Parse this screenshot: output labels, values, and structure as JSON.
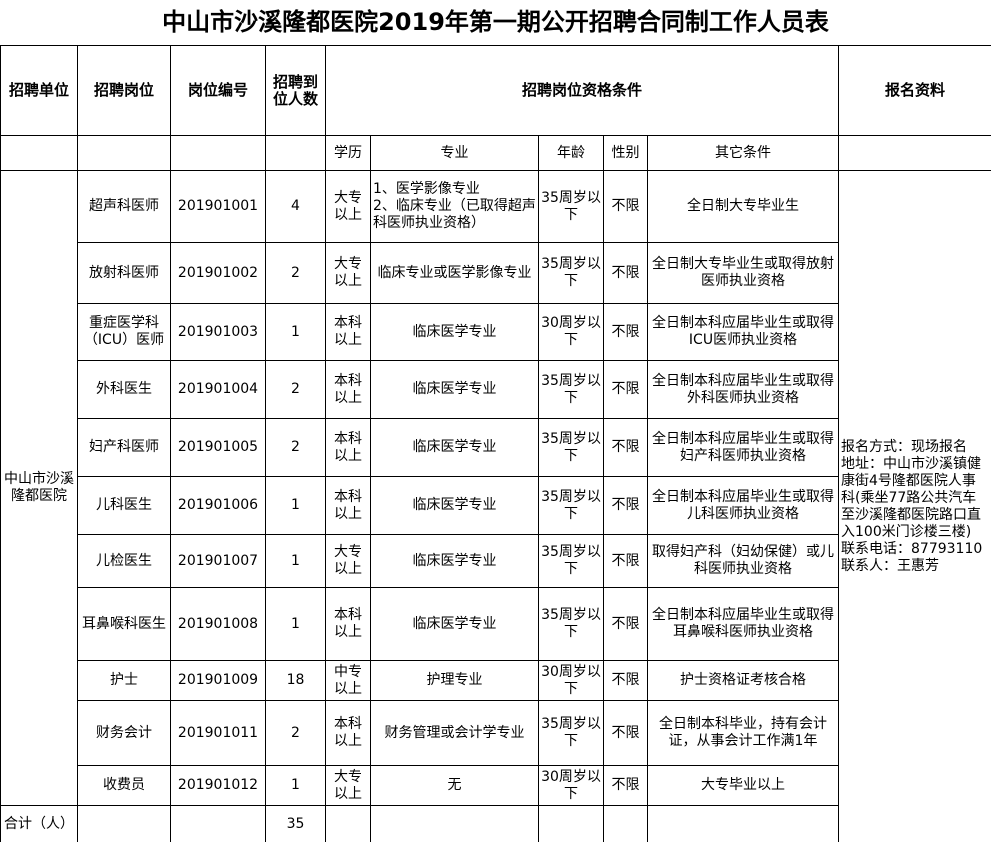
{
  "title": "中山市沙溪隆都医院2019年第一期公开招聘合同制工作人员表",
  "header": [
    "招聘单位",
    "招聘岗位",
    "岗位编号",
    "招聘到位人数",
    "招聘岗位资格条件",
    "报名资料"
  ],
  "subheader": [
    "学历",
    "专业",
    "年龄",
    "性别",
    "其它条件"
  ],
  "unit": "中山市沙溪隆都医院",
  "rows": [
    [
      "超声科医师",
      "201901001",
      4,
      "大专以上",
      "1、医学影像专业\n2、临床专业（已取得超声科医师执业资格）",
      "35周岁以下",
      "不限",
      "全日制大专毕业生"
    ],
    [
      "放射科医师",
      "201901002",
      2,
      "大专以上",
      "临床专业或医学影像专业",
      "35周岁以下",
      "不限",
      "全日制大专毕业生或取得放射医师执业资格"
    ],
    [
      "重症医学科（ICU）医师",
      "201901003",
      1,
      "本科以上",
      "临床医学专业",
      "30周岁以下",
      "不限",
      "全日制本科应届毕业生或取得ICU医师执业资格"
    ],
    [
      "外科医生",
      "201901004",
      2,
      "本科以上",
      "临床医学专业",
      "35周岁以下",
      "不限",
      "全日制本科应届毕业生或取得外科医师执业资格"
    ],
    [
      "妇产科医师",
      "201901005",
      2,
      "本科以上",
      "临床医学专业",
      "35周岁以下",
      "不限",
      "全日制本科应届毕业生或取得妇产科医师执业资格"
    ],
    [
      "儿科医生",
      "201901006",
      1,
      "本科以上",
      "临床医学专业",
      "35周岁以下",
      "不限",
      "全日制本科应届毕业生或取得儿科医师执业资格"
    ],
    [
      "儿检医生",
      "201901007",
      1,
      "大专以上",
      "临床医学专业",
      "35周岁以下",
      "不限",
      "取得妇产科（妇幼保健）或儿科医师执业资格"
    ],
    [
      "耳鼻喉科医生",
      "201901008",
      1,
      "本科以上",
      "临床医学专业",
      "35周岁以下",
      "不限",
      "全日制本科应届毕业生或取得耳鼻喉科医师执业资格"
    ],
    [
      "护士",
      "201901009",
      18,
      "中专以上",
      "护理专业",
      "30周岁以下",
      "不限",
      "护士资格证考核合格"
    ],
    [
      "财务会计",
      "201901011",
      2,
      "本科以上",
      "财务管理或会计学专业",
      "35周岁以下",
      "不限",
      "全日制本科毕业，持有会计证，从事会计工作满1年"
    ],
    [
      "收费员",
      "201901012",
      1,
      "大专以上",
      "无",
      "30周岁以下",
      "不限",
      "大专毕业以上"
    ]
  ],
  "registration": "报名方式：现场报名\n地址：中山市沙溪镇健康街4号隆都医院人事科(乘坐77路公共汽车至沙溪隆都医院路口直入100米门诊楼三楼)\n联系电话：87793110\n联系人：王惠芳",
  "total": {
    "label": "合计（人）",
    "value": 35
  }
}
